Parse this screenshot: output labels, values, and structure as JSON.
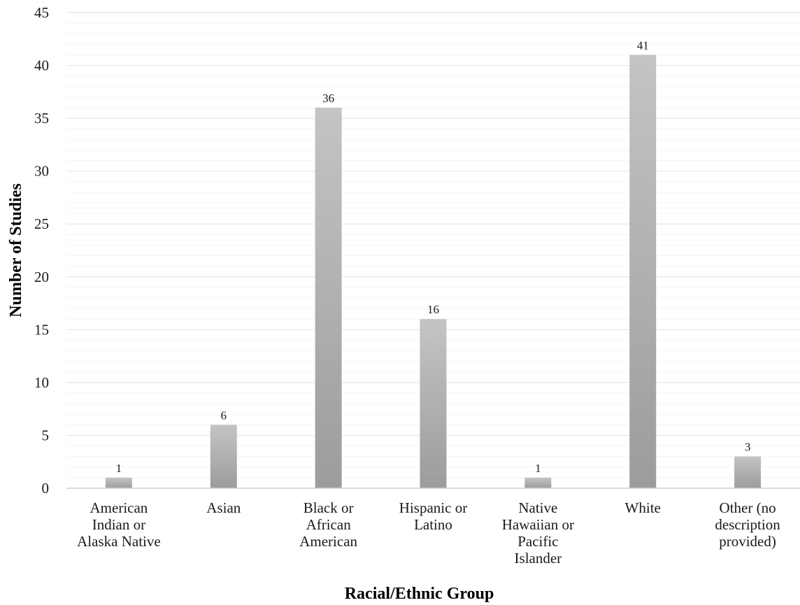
{
  "chart_data": {
    "type": "bar",
    "categories": [
      [
        "American",
        "Indian or",
        "Alaska Native"
      ],
      [
        "Asian"
      ],
      [
        "Black or",
        "African",
        "American"
      ],
      [
        "Hispanic or",
        "Latino"
      ],
      [
        "Native",
        "Hawaiian or",
        "Pacific",
        "Islander"
      ],
      [
        "White"
      ],
      [
        "Other (no",
        "description",
        "provided)"
      ]
    ],
    "values": [
      1,
      6,
      36,
      16,
      1,
      41,
      3
    ],
    "data_labels": [
      "1",
      "6",
      "36",
      "16",
      "1",
      "41",
      "3"
    ],
    "title": "",
    "xlabel": "Racial/Ethnic Group",
    "ylabel": "Number of Studies",
    "ylim": [
      0,
      45
    ],
    "yticks": [
      0,
      5,
      10,
      15,
      20,
      25,
      30,
      35,
      40,
      45
    ],
    "minor_grid_step": 1,
    "grid": true,
    "legend": "none",
    "colors": {
      "bar_light": "#c4c4c4",
      "bar_dark": "#9c9c9c",
      "grid": "#e6e6e6",
      "minor_grid": "#f3f3f3",
      "axis": "#d0d0d0"
    }
  }
}
